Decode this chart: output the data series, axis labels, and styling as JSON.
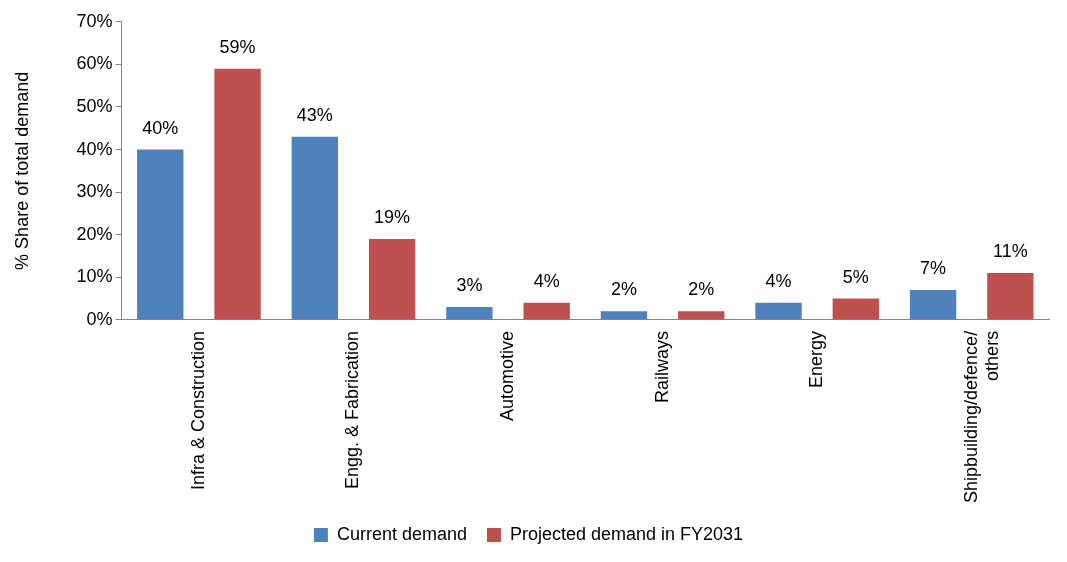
{
  "chart_data": {
    "type": "bar",
    "ylabel": "% Share of total demand",
    "categories": [
      "Infra & Construction",
      "Engg. & Fabrication",
      "Automotive",
      "Railways",
      "Energy",
      "Shipbuilding/defence/ others"
    ],
    "series": [
      {
        "name": "Current demand",
        "color": "#4f81bd",
        "values": [
          40,
          43,
          3,
          2,
          4,
          7
        ],
        "value_labels": [
          "40%",
          "43%",
          "3%",
          "2%",
          "4%",
          "7%"
        ]
      },
      {
        "name": "Projected demand in FY2031",
        "color": "#c0504d",
        "values": [
          59,
          19,
          4,
          2,
          5,
          11
        ],
        "value_labels": [
          "59%",
          "19%",
          "4%",
          "2%",
          "5%",
          "11%"
        ]
      }
    ],
    "ylim": [
      0,
      70
    ],
    "yticks": [
      {
        "value": 0,
        "label": "0%"
      },
      {
        "value": 10,
        "label": "10%"
      },
      {
        "value": 20,
        "label": "20%"
      },
      {
        "value": 30,
        "label": "30%"
      },
      {
        "value": 40,
        "label": "40%"
      },
      {
        "value": 50,
        "label": "50%"
      },
      {
        "value": 60,
        "label": "60%"
      },
      {
        "value": 70,
        "label": "70%"
      }
    ],
    "grid": false,
    "legend": "bottom"
  }
}
